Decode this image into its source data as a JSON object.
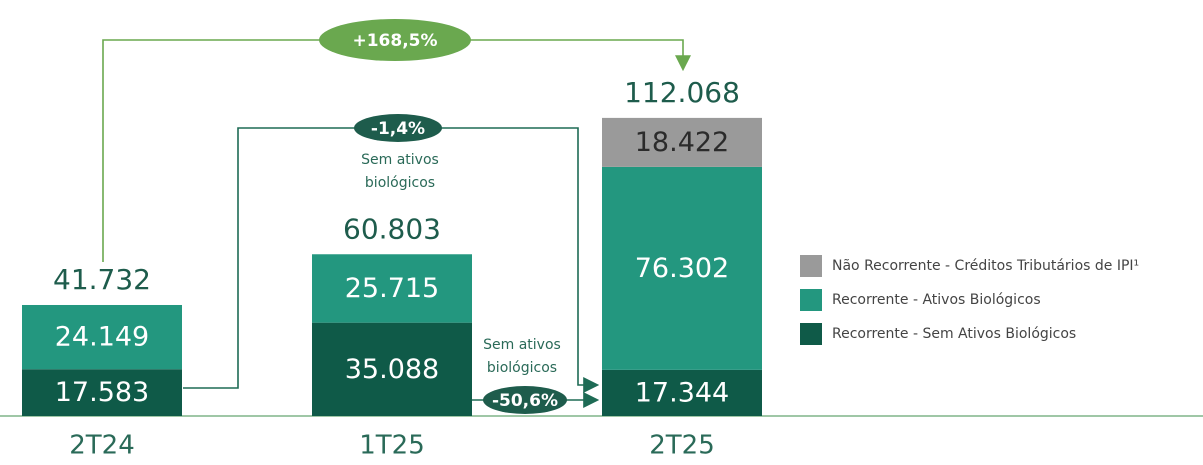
{
  "chart_data": {
    "type": "stacked_bar",
    "categories": [
      "2T24",
      "1T25",
      "2T25"
    ],
    "series": [
      {
        "name": "Recorrente - Sem Ativos Biológicos",
        "color": "#0f5a48",
        "values": [
          17583,
          35088,
          17344
        ],
        "value_labels": [
          "17.583",
          "35.088",
          "17.344"
        ]
      },
      {
        "name": "Recorrente - Ativos Biológicos",
        "color": "#23977f",
        "values": [
          24149,
          25715,
          76302
        ],
        "value_labels": [
          "24.149",
          "25.715",
          "76.302"
        ]
      },
      {
        "name": "Não Recorrente - Créditos Tributários de IPI¹",
        "color": "#9a9a9a",
        "values": [
          null,
          null,
          18422
        ],
        "value_labels": [
          null,
          null,
          "18.422"
        ]
      }
    ],
    "totals": {
      "values": [
        41732,
        60803,
        112068
      ],
      "value_labels": [
        "41.732",
        "60.803",
        "112.068"
      ]
    },
    "annotations": [
      {
        "text": "+168,5%"
      },
      {
        "text": "-1,4%",
        "note": [
          "Sem ativos",
          "biológicos"
        ]
      },
      {
        "text": "-50,6%",
        "note": [
          "Sem ativos",
          "biológicos"
        ]
      }
    ]
  }
}
